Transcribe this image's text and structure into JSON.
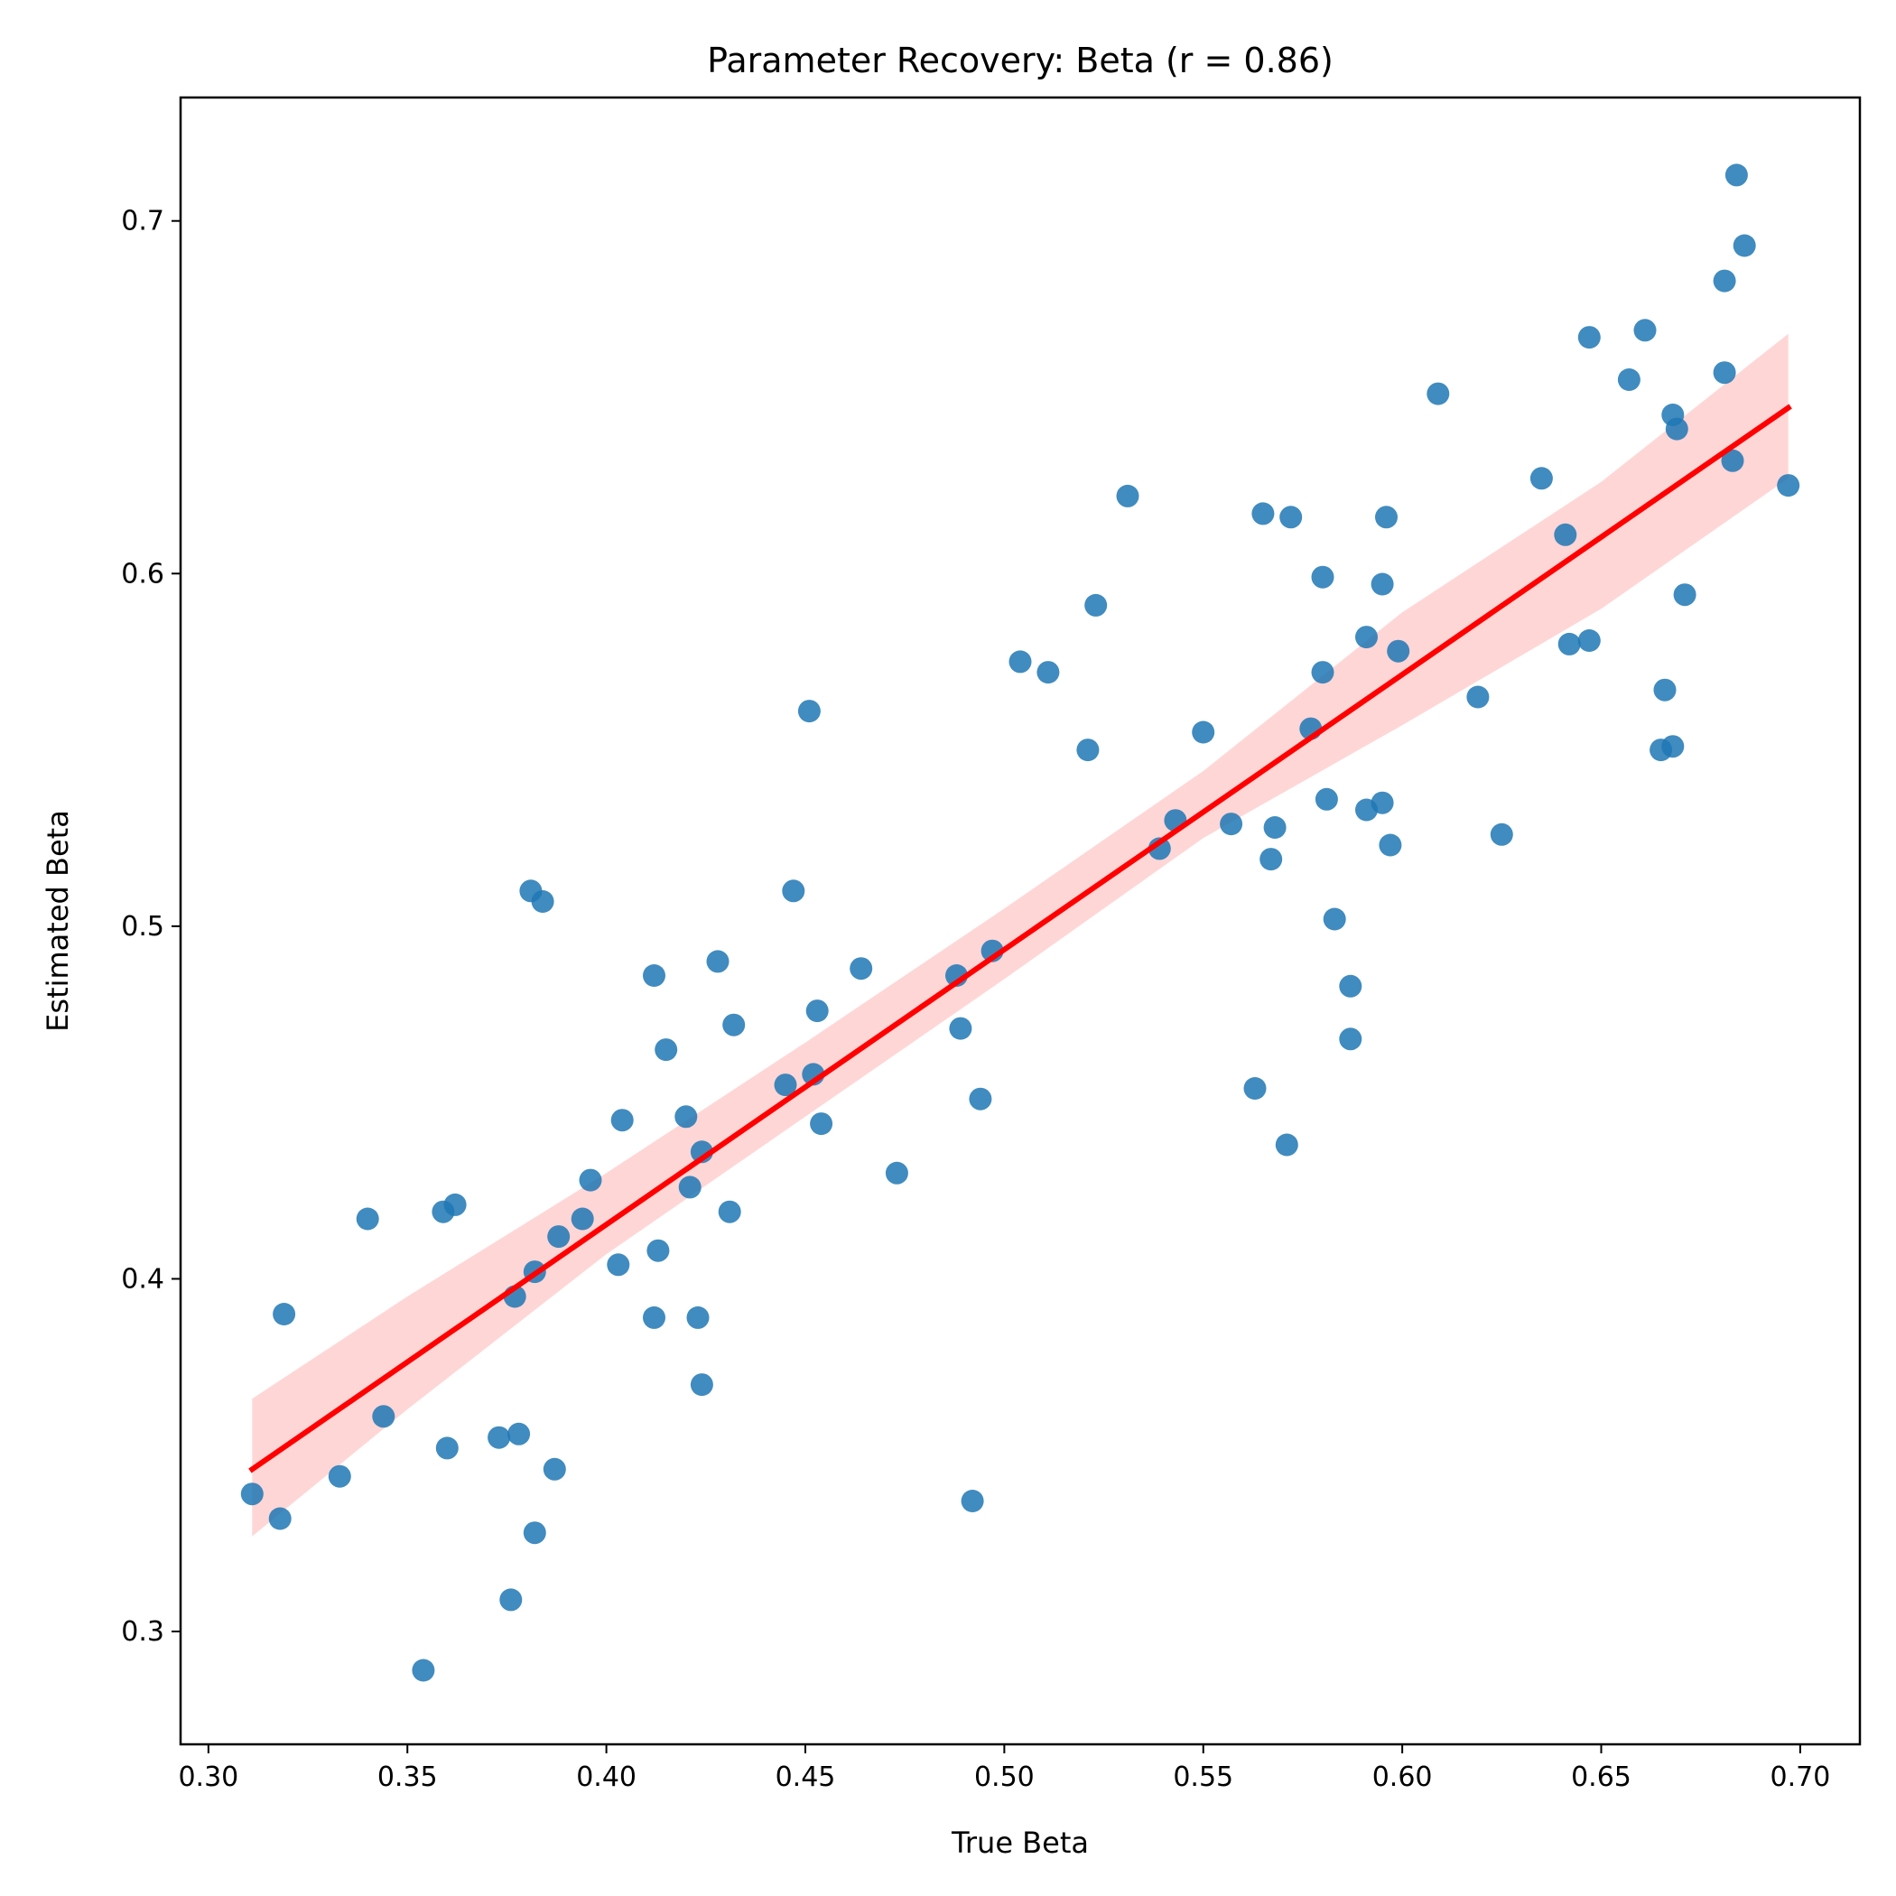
{
  "chart_data": {
    "type": "scatter",
    "title": "Parameter Recovery: Beta (r = 0.86)",
    "xlabel": "True Beta",
    "ylabel": "Estimated Beta",
    "xlim": [
      0.293,
      0.715
    ],
    "ylim": [
      0.268,
      0.735
    ],
    "xticks": [
      0.3,
      0.35,
      0.4,
      0.45,
      0.5,
      0.55,
      0.6,
      0.65,
      0.7
    ],
    "xtick_labels": [
      "0.30",
      "0.35",
      "0.40",
      "0.45",
      "0.50",
      "0.55",
      "0.60",
      "0.65",
      "0.70"
    ],
    "yticks": [
      0.3,
      0.4,
      0.5,
      0.6,
      0.7
    ],
    "ytick_labels": [
      "0.3",
      "0.4",
      "0.5",
      "0.6",
      "0.7"
    ],
    "grid": false,
    "point_color": "#1f77b4",
    "line_color": "#ff0000",
    "band_color": "#ffcccc",
    "regression_line": {
      "x": [
        0.311,
        0.697
      ],
      "y": [
        0.346,
        0.647
      ]
    },
    "confidence_band": {
      "x": [
        0.311,
        0.35,
        0.4,
        0.45,
        0.5,
        0.55,
        0.6,
        0.65,
        0.697
      ],
      "upper": [
        0.366,
        0.395,
        0.43,
        0.467,
        0.505,
        0.544,
        0.589,
        0.626,
        0.668
      ],
      "lower": [
        0.327,
        0.363,
        0.407,
        0.446,
        0.485,
        0.525,
        0.557,
        0.59,
        0.627
      ]
    },
    "points": [
      {
        "x": 0.311,
        "y": 0.339
      },
      {
        "x": 0.318,
        "y": 0.332
      },
      {
        "x": 0.319,
        "y": 0.39
      },
      {
        "x": 0.333,
        "y": 0.344
      },
      {
        "x": 0.34,
        "y": 0.417
      },
      {
        "x": 0.344,
        "y": 0.361
      },
      {
        "x": 0.354,
        "y": 0.289
      },
      {
        "x": 0.359,
        "y": 0.419
      },
      {
        "x": 0.36,
        "y": 0.352
      },
      {
        "x": 0.362,
        "y": 0.421
      },
      {
        "x": 0.373,
        "y": 0.355
      },
      {
        "x": 0.376,
        "y": 0.309
      },
      {
        "x": 0.377,
        "y": 0.395
      },
      {
        "x": 0.378,
        "y": 0.356
      },
      {
        "x": 0.381,
        "y": 0.51
      },
      {
        "x": 0.382,
        "y": 0.402
      },
      {
        "x": 0.382,
        "y": 0.328
      },
      {
        "x": 0.384,
        "y": 0.507
      },
      {
        "x": 0.387,
        "y": 0.346
      },
      {
        "x": 0.388,
        "y": 0.412
      },
      {
        "x": 0.394,
        "y": 0.417
      },
      {
        "x": 0.396,
        "y": 0.428
      },
      {
        "x": 0.403,
        "y": 0.404
      },
      {
        "x": 0.404,
        "y": 0.445
      },
      {
        "x": 0.412,
        "y": 0.389
      },
      {
        "x": 0.412,
        "y": 0.486
      },
      {
        "x": 0.413,
        "y": 0.408
      },
      {
        "x": 0.415,
        "y": 0.465
      },
      {
        "x": 0.42,
        "y": 0.446
      },
      {
        "x": 0.421,
        "y": 0.426
      },
      {
        "x": 0.423,
        "y": 0.389
      },
      {
        "x": 0.424,
        "y": 0.37
      },
      {
        "x": 0.424,
        "y": 0.436
      },
      {
        "x": 0.428,
        "y": 0.49
      },
      {
        "x": 0.431,
        "y": 0.419
      },
      {
        "x": 0.432,
        "y": 0.472
      },
      {
        "x": 0.445,
        "y": 0.455
      },
      {
        "x": 0.447,
        "y": 0.51
      },
      {
        "x": 0.451,
        "y": 0.561
      },
      {
        "x": 0.452,
        "y": 0.458
      },
      {
        "x": 0.453,
        "y": 0.476
      },
      {
        "x": 0.454,
        "y": 0.444
      },
      {
        "x": 0.464,
        "y": 0.488
      },
      {
        "x": 0.473,
        "y": 0.43
      },
      {
        "x": 0.488,
        "y": 0.486
      },
      {
        "x": 0.489,
        "y": 0.471
      },
      {
        "x": 0.492,
        "y": 0.337
      },
      {
        "x": 0.494,
        "y": 0.451
      },
      {
        "x": 0.497,
        "y": 0.493
      },
      {
        "x": 0.504,
        "y": 0.575
      },
      {
        "x": 0.511,
        "y": 0.572
      },
      {
        "x": 0.521,
        "y": 0.55
      },
      {
        "x": 0.523,
        "y": 0.591
      },
      {
        "x": 0.531,
        "y": 0.622
      },
      {
        "x": 0.539,
        "y": 0.522
      },
      {
        "x": 0.543,
        "y": 0.53
      },
      {
        "x": 0.55,
        "y": 0.555
      },
      {
        "x": 0.557,
        "y": 0.529
      },
      {
        "x": 0.563,
        "y": 0.454
      },
      {
        "x": 0.565,
        "y": 0.617
      },
      {
        "x": 0.567,
        "y": 0.519
      },
      {
        "x": 0.568,
        "y": 0.528
      },
      {
        "x": 0.571,
        "y": 0.438
      },
      {
        "x": 0.572,
        "y": 0.616
      },
      {
        "x": 0.577,
        "y": 0.556
      },
      {
        "x": 0.58,
        "y": 0.599
      },
      {
        "x": 0.58,
        "y": 0.572
      },
      {
        "x": 0.581,
        "y": 0.536
      },
      {
        "x": 0.583,
        "y": 0.502
      },
      {
        "x": 0.587,
        "y": 0.483
      },
      {
        "x": 0.587,
        "y": 0.468
      },
      {
        "x": 0.591,
        "y": 0.582
      },
      {
        "x": 0.591,
        "y": 0.533
      },
      {
        "x": 0.595,
        "y": 0.597
      },
      {
        "x": 0.595,
        "y": 0.535
      },
      {
        "x": 0.596,
        "y": 0.616
      },
      {
        "x": 0.597,
        "y": 0.523
      },
      {
        "x": 0.599,
        "y": 0.578
      },
      {
        "x": 0.609,
        "y": 0.651
      },
      {
        "x": 0.619,
        "y": 0.565
      },
      {
        "x": 0.625,
        "y": 0.526
      },
      {
        "x": 0.635,
        "y": 0.627
      },
      {
        "x": 0.641,
        "y": 0.611
      },
      {
        "x": 0.642,
        "y": 0.58
      },
      {
        "x": 0.647,
        "y": 0.581
      },
      {
        "x": 0.647,
        "y": 0.667
      },
      {
        "x": 0.657,
        "y": 0.655
      },
      {
        "x": 0.661,
        "y": 0.669
      },
      {
        "x": 0.665,
        "y": 0.55
      },
      {
        "x": 0.666,
        "y": 0.567
      },
      {
        "x": 0.668,
        "y": 0.645
      },
      {
        "x": 0.668,
        "y": 0.551
      },
      {
        "x": 0.669,
        "y": 0.641
      },
      {
        "x": 0.671,
        "y": 0.594
      },
      {
        "x": 0.681,
        "y": 0.683
      },
      {
        "x": 0.681,
        "y": 0.657
      },
      {
        "x": 0.683,
        "y": 0.632
      },
      {
        "x": 0.684,
        "y": 0.713
      },
      {
        "x": 0.686,
        "y": 0.693
      },
      {
        "x": 0.697,
        "y": 0.625
      }
    ]
  }
}
